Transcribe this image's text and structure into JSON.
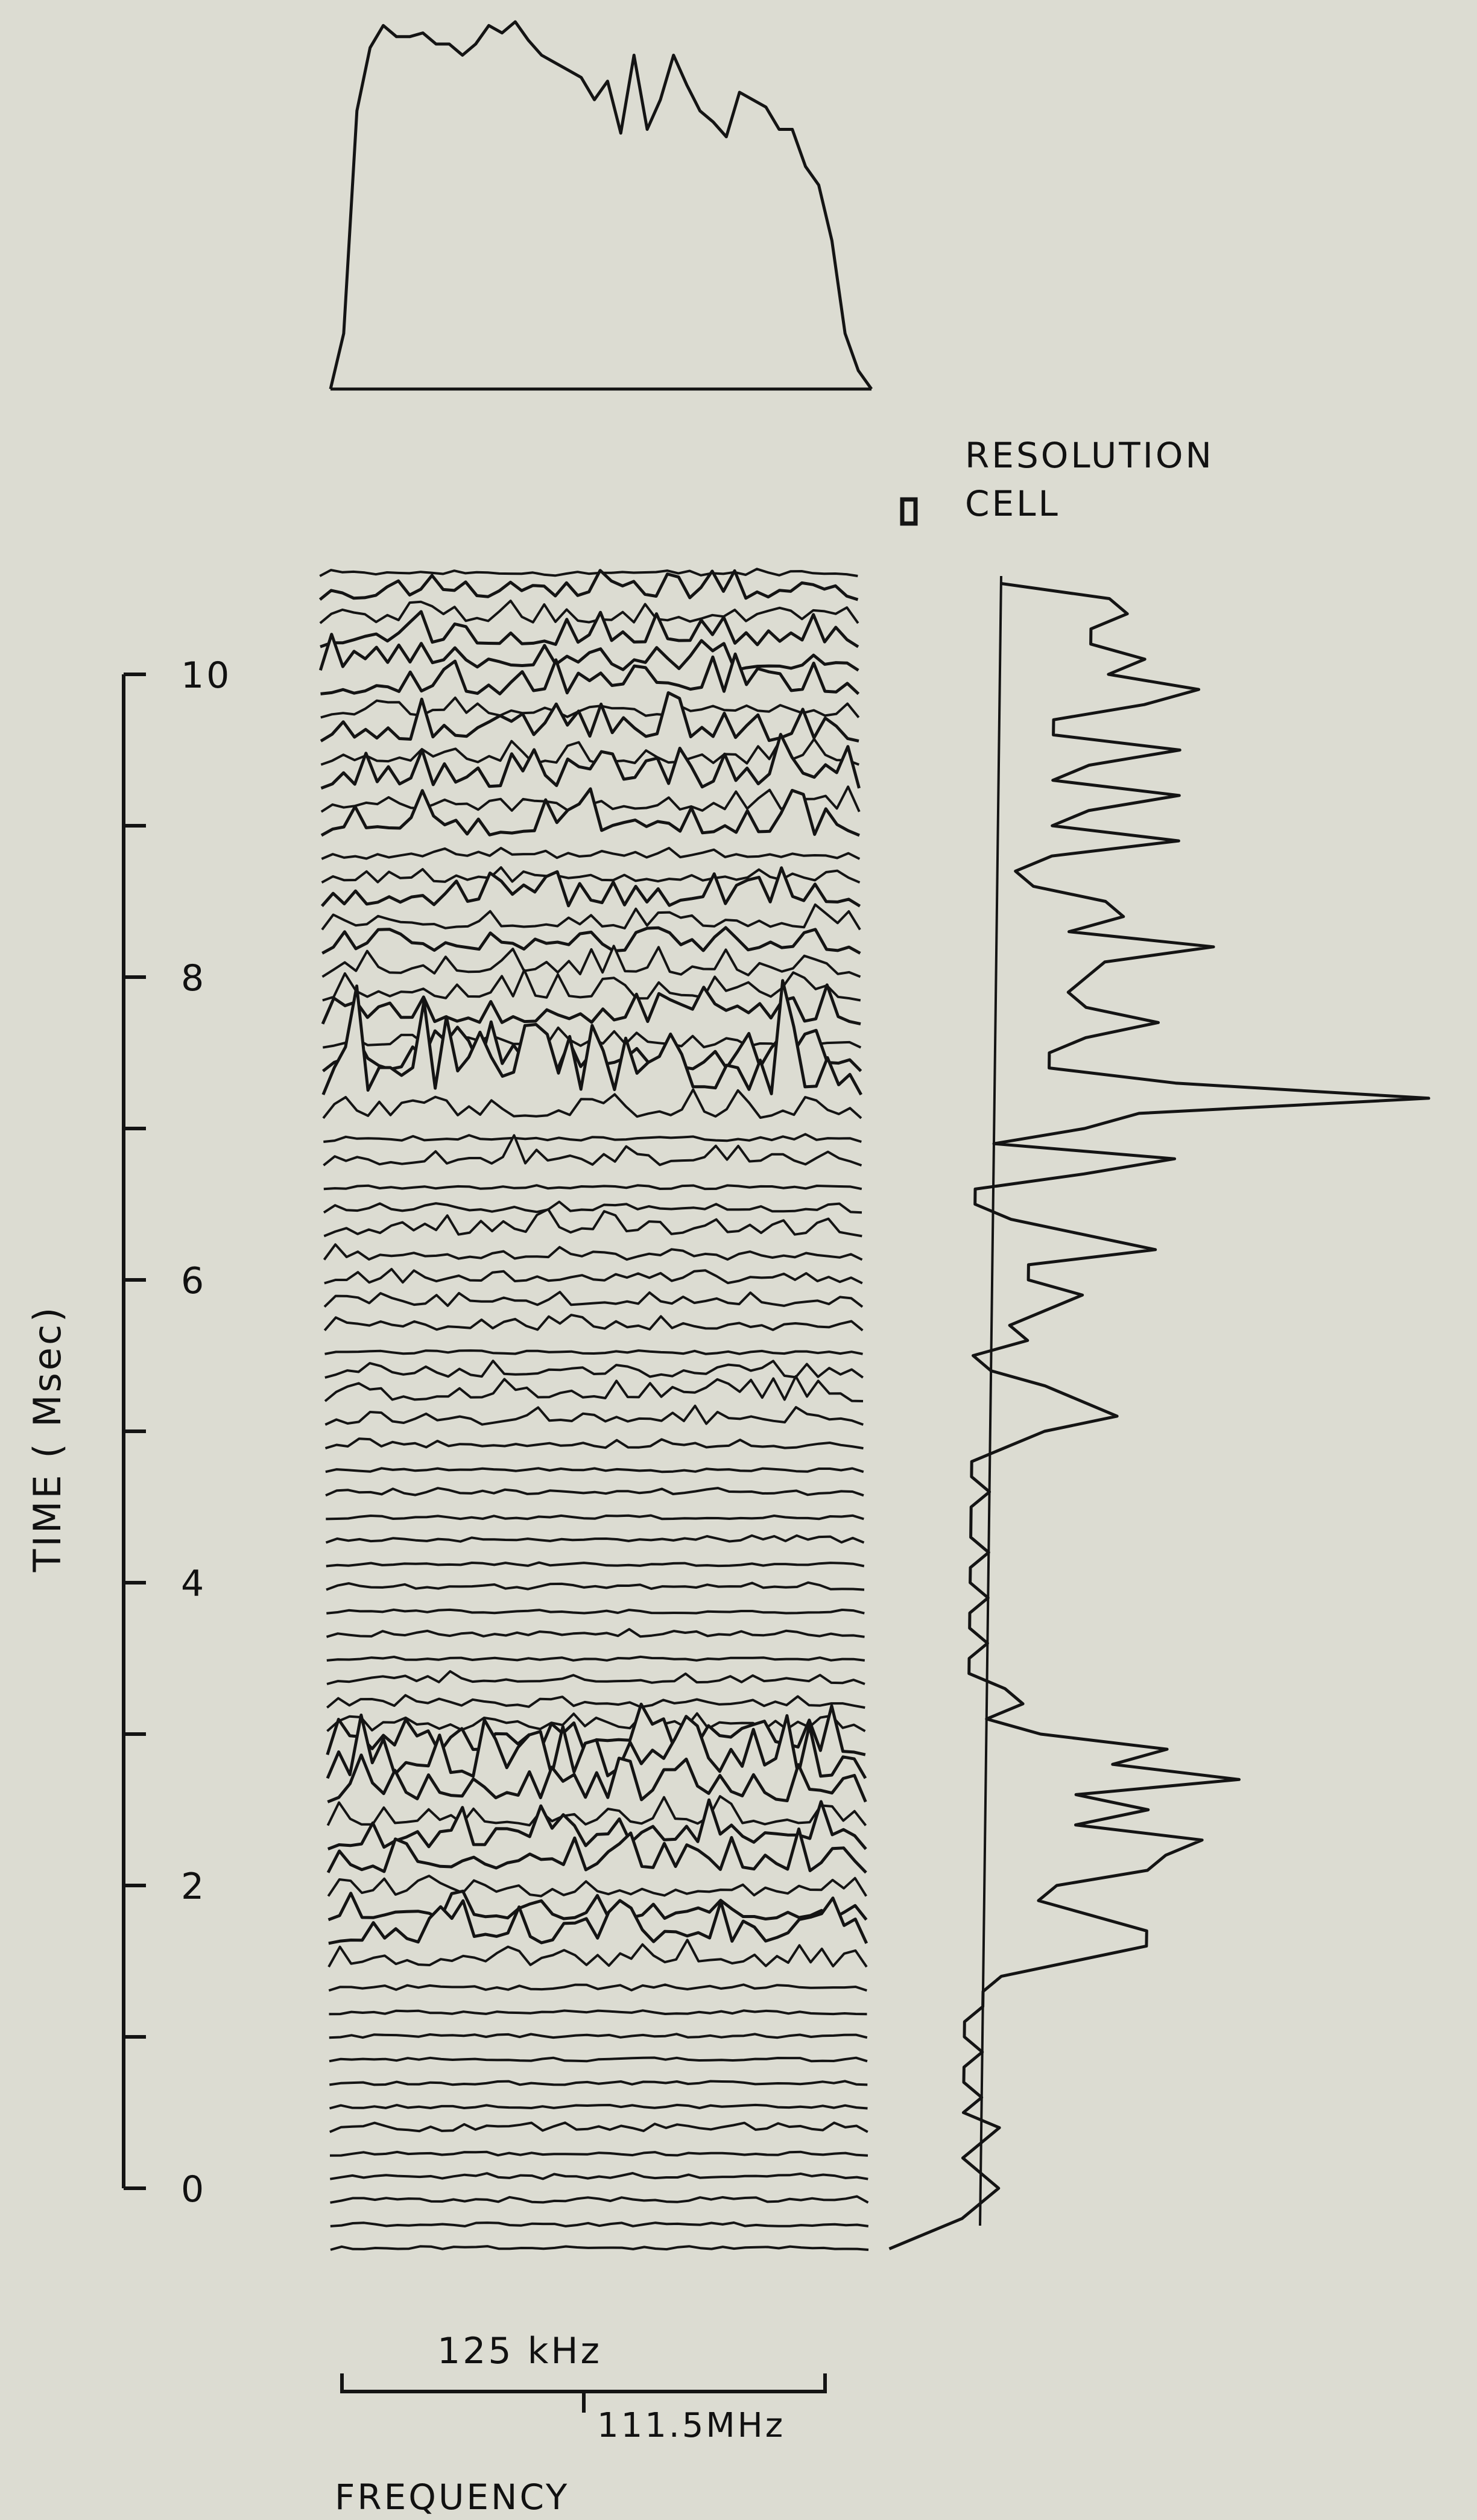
{
  "figure": {
    "colors": {
      "paper": "#dcdcd2",
      "ink": "#141414"
    }
  },
  "chart_data": {
    "type": "line",
    "stacked_spectra": {
      "n_traces": 72,
      "x_label": "FREQUENCY",
      "y_label": "TIME ( Msec)",
      "y_range": [
        0,
        10.5
      ],
      "y_ticks": [
        0,
        1,
        2,
        3,
        4,
        5,
        6,
        7,
        8,
        9,
        10
      ],
      "y_tick_labels": [
        "0",
        "2",
        "4",
        "6",
        "8",
        "10"
      ],
      "frequency_scale": {
        "bandwidth_label": "125 kHz",
        "center_label": "111.5MHz"
      }
    },
    "annotation": {
      "resolution_label_line1": "RESOLUTION",
      "resolution_label_line2": "CELL"
    },
    "spectrum_profile": {
      "description": "Integrated power versus frequency (top curve)",
      "x": [
        0,
        1,
        2,
        3,
        4,
        5,
        6,
        7,
        8,
        9,
        10,
        11,
        12,
        13,
        14,
        15,
        16,
        17,
        18,
        19,
        20,
        21,
        22,
        23,
        24,
        25,
        26,
        27,
        28,
        29,
        30,
        31,
        32,
        33,
        34,
        35,
        36,
        37,
        38,
        39,
        40,
        41
      ],
      "values": [
        0,
        0.15,
        0.75,
        0.92,
        0.98,
        0.95,
        0.95,
        0.96,
        0.93,
        0.93,
        0.9,
        0.93,
        0.98,
        0.96,
        0.99,
        0.94,
        0.9,
        0.88,
        0.86,
        0.84,
        0.78,
        0.83,
        0.69,
        0.9,
        0.7,
        0.78,
        0.9,
        0.82,
        0.75,
        0.72,
        0.68,
        0.8,
        0.78,
        0.76,
        0.7,
        0.7,
        0.6,
        0.55,
        0.4,
        0.15,
        0.05,
        0
      ]
    },
    "time_profile": {
      "description": "Integrated power versus time (right-hand curve)",
      "time": [
        10.6,
        10.5,
        10.4,
        10.3,
        10.2,
        10.1,
        10.0,
        9.9,
        9.8,
        9.7,
        9.6,
        9.5,
        9.4,
        9.3,
        9.2,
        9.1,
        9.0,
        8.9,
        8.8,
        8.7,
        8.6,
        8.5,
        8.4,
        8.3,
        8.2,
        8.1,
        8.0,
        7.9,
        7.8,
        7.7,
        7.6,
        7.5,
        7.4,
        7.3,
        7.2,
        7.1,
        7.0,
        6.9,
        6.8,
        6.7,
        6.6,
        6.5,
        6.4,
        6.3,
        6.2,
        6.1,
        6.0,
        5.9,
        5.8,
        5.7,
        5.6,
        5.5,
        5.4,
        5.3,
        5.2,
        5.1,
        5.0,
        4.9,
        4.8,
        4.7,
        4.6,
        4.5,
        4.4,
        4.3,
        4.2,
        4.1,
        4.0,
        3.9,
        3.8,
        3.7,
        3.6,
        3.5,
        3.4,
        3.3,
        3.2,
        3.1,
        3.0,
        2.9,
        2.8,
        2.7,
        2.6,
        2.5,
        2.4,
        2.3,
        2.2,
        2.1,
        2.0,
        1.9,
        1.8,
        1.7,
        1.6,
        1.5,
        1.4,
        1.3,
        1.2,
        1.1,
        1.0,
        0.9,
        0.8,
        0.7,
        0.6,
        0.5,
        0.4,
        0.3,
        0.2,
        0.1,
        0.0,
        -0.1,
        -0.2,
        -0.3,
        -0.4
      ],
      "values": [
        0.05,
        0.35,
        0.4,
        0.3,
        0.3,
        0.45,
        0.35,
        0.6,
        0.45,
        0.2,
        0.2,
        0.55,
        0.3,
        0.2,
        0.55,
        0.3,
        0.2,
        0.55,
        0.2,
        0.1,
        0.15,
        0.35,
        0.4,
        0.25,
        0.65,
        0.35,
        0.3,
        0.25,
        0.3,
        0.5,
        0.3,
        0.2,
        0.2,
        0.55,
        1.25,
        0.45,
        0.3,
        0.05,
        0.55,
        0.3,
        0.0,
        0.0,
        0.1,
        0.3,
        0.5,
        0.15,
        0.15,
        0.3,
        0.2,
        0.1,
        0.15,
        0.0,
        0.05,
        0.2,
        0.3,
        0.4,
        0.2,
        0.1,
        0.0,
        0.0,
        0.05,
        0.0,
        0.0,
        0.0,
        0.05,
        0.0,
        0.0,
        0.05,
        0.0,
        0.0,
        0.05,
        0.0,
        0.0,
        0.1,
        0.15,
        0.05,
        0.2,
        0.55,
        0.4,
        0.75,
        0.3,
        0.5,
        0.3,
        0.65,
        0.55,
        0.5,
        0.25,
        0.2,
        0.35,
        0.5,
        0.5,
        0.3,
        0.1,
        0.05,
        0.05,
        0.0,
        0.0,
        0.05,
        0.0,
        0.0,
        0.05,
        0.0,
        0.1,
        0.05,
        0.0,
        0.05,
        0.1,
        0.05,
        0.0,
        -0.1,
        -0.2
      ],
      "baseline": 0.05
    }
  }
}
